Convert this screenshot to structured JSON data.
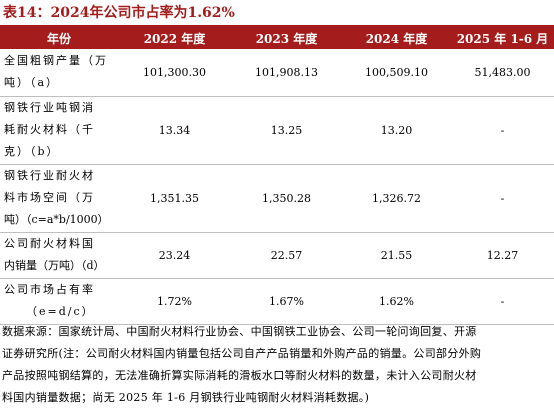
{
  "caption": "表14：2024年公司市占率为1.62%",
  "columns": [
    "年份",
    "2022 年度",
    "2023 年度",
    "2024 年度",
    "2025 年 1-6 月"
  ],
  "rows": [
    {
      "label_lines": [
        "全国粗钢产量（万",
        "吨）（a）"
      ],
      "values": [
        "101,300.30",
        "101,908.13",
        "100,509.10",
        "51,483.00"
      ]
    },
    {
      "label_lines": [
        "钢铁行业吨钢消",
        "耗耐火材料（千",
        "克）（b）"
      ],
      "values": [
        "13.34",
        "13.25",
        "13.20",
        "-"
      ]
    },
    {
      "label_lines": [
        "钢铁行业耐火材",
        "料市场空间（万",
        "吨）（c=a*b/1000）"
      ],
      "values": [
        "1,351.35",
        "1,350.28",
        "1,326.72",
        "-"
      ]
    },
    {
      "label_lines": [
        "公司耐火材料国",
        "内销量（万吨）（d）"
      ],
      "values": [
        "23.24",
        "22.57",
        "21.55",
        "12.27"
      ]
    },
    {
      "label_lines": [
        "公司市场占有率",
        "（e=d/c）"
      ],
      "values": [
        "1.72%",
        "1.67%",
        "1.62%",
        "-"
      ]
    }
  ],
  "source_lines": [
    "数据来源：国家统计局、中国耐火材料行业协会、中国钢铁工业协会、公司一轮问询回复、开源",
    "证券研究所(注：公司耐火材料国内销量包括公司自产产品销量和外购产品的销量。公司部分外购",
    "产品按照吨钢结算的，无法准确折算实际消耗的滑板水口等耐火材料的数量，未计入公司耐火材",
    "料国内销量数据；尚无 2025 年 1-6 月钢铁行业吨钢耐火材料消耗数据。)"
  ],
  "colors": {
    "accent": "#a51c1c",
    "rule": "#bfbfbf",
    "header_text": "#ffffff"
  }
}
